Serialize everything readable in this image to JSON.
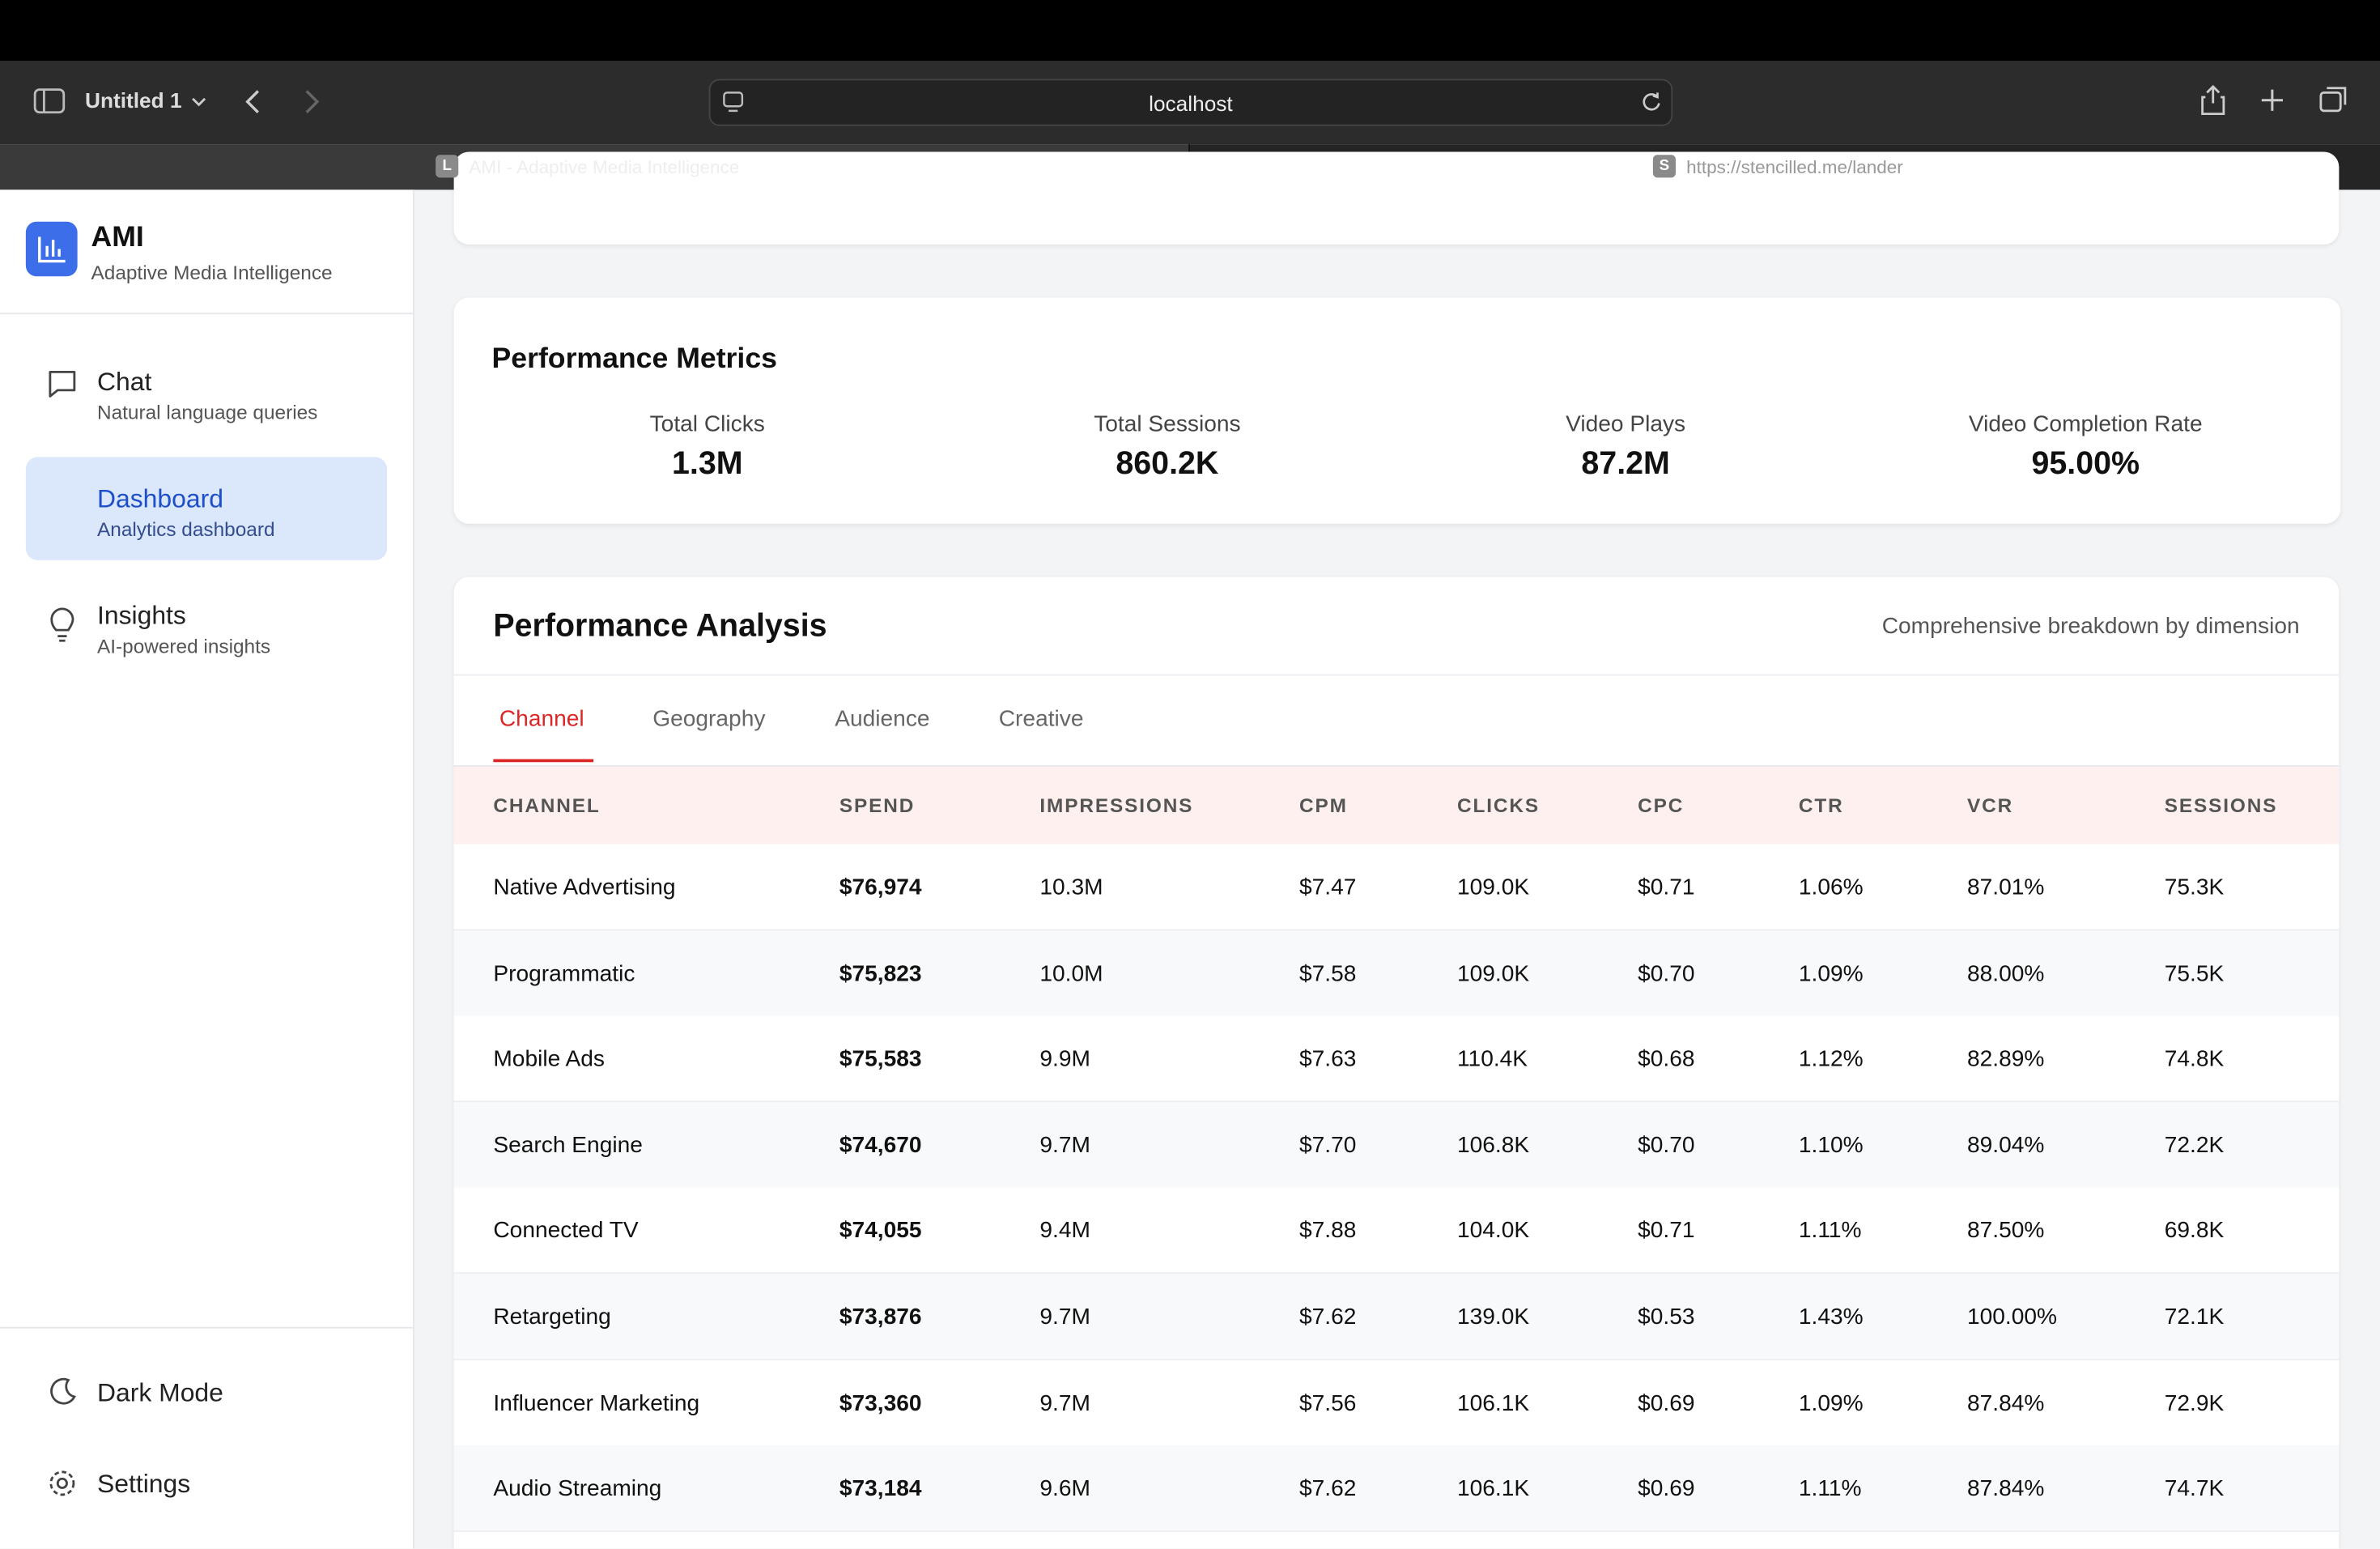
{
  "browser": {
    "tab_group": "Untitled 1",
    "url": "localhost",
    "tabs": [
      {
        "icon": "L",
        "title": "AMI - Adaptive Media Intelligence"
      },
      {
        "icon": "S",
        "title": "https://stencilled.me/lander"
      }
    ]
  },
  "sidebar": {
    "brand": "AMI",
    "tagline": "Adaptive Media Intelligence",
    "nav": [
      {
        "label": "Chat",
        "sub": "Natural language queries"
      },
      {
        "label": "Dashboard",
        "sub": "Analytics dashboard"
      },
      {
        "label": "Insights",
        "sub": "AI-powered insights"
      }
    ],
    "footer": [
      "Dark Mode",
      "Settings"
    ]
  },
  "metrics": {
    "title": "Performance Metrics",
    "items": [
      {
        "label": "Total Clicks",
        "value": "1.3M"
      },
      {
        "label": "Total Sessions",
        "value": "860.2K"
      },
      {
        "label": "Video Plays",
        "value": "87.2M"
      },
      {
        "label": "Video Completion Rate",
        "value": "95.00%"
      }
    ]
  },
  "analysis": {
    "title": "Performance Analysis",
    "subtitle": "Comprehensive breakdown by dimension",
    "tabs": [
      "Channel",
      "Geography",
      "Audience",
      "Creative"
    ],
    "table": {
      "columns": [
        "CHANNEL",
        "SPEND",
        "IMPRESSIONS",
        "CPM",
        "CLICKS",
        "CPC",
        "CTR",
        "VCR",
        "SESSIONS"
      ],
      "rows": [
        [
          "Native Advertising",
          "$76,974",
          "10.3M",
          "$7.47",
          "109.0K",
          "$0.71",
          "1.06%",
          "87.01%",
          "75.3K"
        ],
        [
          "Programmatic",
          "$75,823",
          "10.0M",
          "$7.58",
          "109.0K",
          "$0.70",
          "1.09%",
          "88.00%",
          "75.5K"
        ],
        [
          "Mobile Ads",
          "$75,583",
          "9.9M",
          "$7.63",
          "110.4K",
          "$0.68",
          "1.12%",
          "82.89%",
          "74.8K"
        ],
        [
          "Search Engine",
          "$74,670",
          "9.7M",
          "$7.70",
          "106.8K",
          "$0.70",
          "1.10%",
          "89.04%",
          "72.2K"
        ],
        [
          "Connected TV",
          "$74,055",
          "9.4M",
          "$7.88",
          "104.0K",
          "$0.71",
          "1.11%",
          "87.50%",
          "69.8K"
        ],
        [
          "Retargeting",
          "$73,876",
          "9.7M",
          "$7.62",
          "139.0K",
          "$0.53",
          "1.43%",
          "100.00%",
          "72.1K"
        ],
        [
          "Influencer Marketing",
          "$73,360",
          "9.7M",
          "$7.56",
          "106.1K",
          "$0.69",
          "1.09%",
          "87.84%",
          "72.9K"
        ],
        [
          "Audio Streaming",
          "$73,184",
          "9.6M",
          "$7.62",
          "106.1K",
          "$0.69",
          "1.11%",
          "87.84%",
          "74.7K"
        ]
      ]
    }
  }
}
